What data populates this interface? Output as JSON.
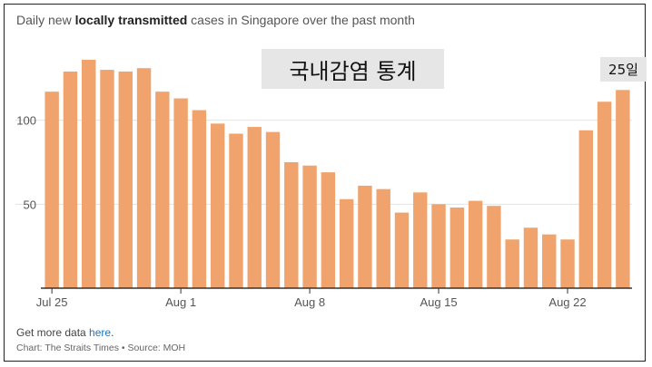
{
  "title": {
    "prefix": "Daily new ",
    "bold": "locally transmitted",
    "suffix": " cases in Singapore over the past month"
  },
  "overlay_note": "국내감염 통계",
  "day_note": "25일",
  "footer": {
    "more_prefix": "Get more data ",
    "more_link": "here",
    "more_suffix": ".",
    "credit": "Chart: The Straits Times • Source: MOH"
  },
  "colors": {
    "bar": "#f0a36c",
    "axis": "#333333",
    "grid": "#e3e3e3"
  },
  "chart_data": {
    "type": "bar",
    "title": "Daily new locally transmitted cases in Singapore over the past month",
    "x": [
      "Jul 25",
      "Jul 26",
      "Jul 27",
      "Jul 28",
      "Jul 29",
      "Jul 30",
      "Jul 31",
      "Aug 1",
      "Aug 2",
      "Aug 3",
      "Aug 4",
      "Aug 5",
      "Aug 6",
      "Aug 7",
      "Aug 8",
      "Aug 9",
      "Aug 10",
      "Aug 11",
      "Aug 12",
      "Aug 13",
      "Aug 14",
      "Aug 15",
      "Aug 16",
      "Aug 17",
      "Aug 18",
      "Aug 19",
      "Aug 20",
      "Aug 21",
      "Aug 22",
      "Aug 23",
      "Aug 24",
      "Aug 25"
    ],
    "values": [
      117,
      129,
      136,
      130,
      129,
      131,
      117,
      113,
      106,
      98,
      92,
      96,
      93,
      75,
      73,
      69,
      53,
      61,
      59,
      45,
      57,
      50,
      48,
      52,
      49,
      29,
      36,
      32,
      29,
      94,
      111,
      118
    ],
    "xticks": [
      "Jul 25",
      "Aug 1",
      "Aug 8",
      "Aug 15",
      "Aug 22"
    ],
    "yticks": [
      50,
      100
    ],
    "ylim": [
      0,
      150
    ],
    "grid": "horizontal"
  }
}
